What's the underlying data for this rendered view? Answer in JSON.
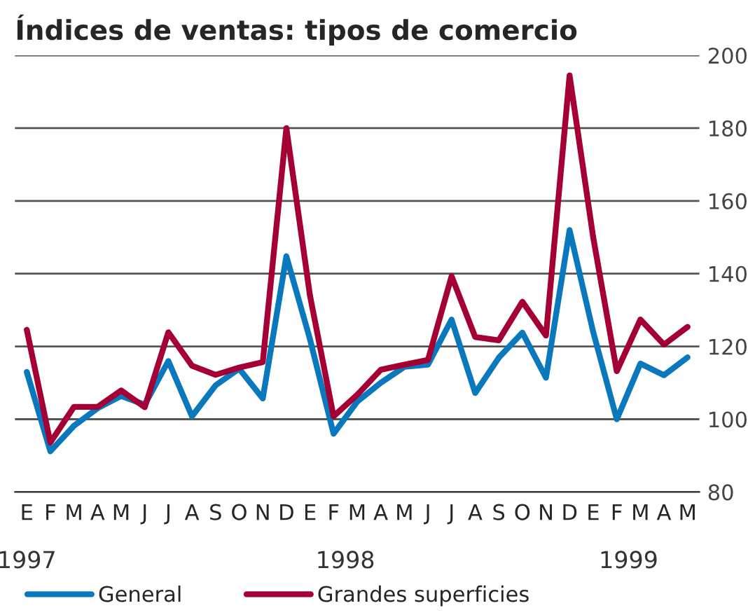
{
  "chart_data": {
    "type": "line",
    "title": "Índices de ventas: tipos de comercio",
    "categories": [
      "E",
      "F",
      "M",
      "A",
      "M",
      "J",
      "J",
      "A",
      "S",
      "O",
      "N",
      "D",
      "E",
      "F",
      "M",
      "A",
      "M",
      "J",
      "J",
      "A",
      "S",
      "O",
      "N",
      "D",
      "E",
      "F",
      "M",
      "A",
      "M"
    ],
    "annotations": [
      "1997",
      "1998",
      "1999"
    ],
    "series": [
      {
        "name": "General",
        "color": "#0a78bd",
        "values": [
          113,
          91.2,
          98.2,
          103,
          106.4,
          104,
          116,
          100.8,
          109.3,
          113.9,
          105.7,
          144.8,
          122,
          96,
          104.8,
          110,
          114.4,
          115,
          127.4,
          107.2,
          116.9,
          123.8,
          111.4,
          152,
          124,
          100,
          115.3,
          112.1,
          117
        ]
      },
      {
        "name": "Grandes superficies",
        "color": "#a50034",
        "values": [
          124.6,
          93.6,
          103.4,
          103.4,
          107.9,
          103.3,
          123.9,
          114.7,
          112.2,
          114.2,
          115.7,
          180,
          134,
          100.8,
          106.7,
          113.6,
          115,
          116.3,
          139.3,
          122.6,
          121.7,
          132.3,
          123,
          194.5,
          150,
          113.2,
          127.4,
          120.5,
          125.4
        ]
      }
    ],
    "ylim": [
      80,
      200
    ],
    "yticks": [
      80,
      100,
      120,
      140,
      160,
      180,
      200
    ],
    "grid": "y",
    "legend": "bottom left",
    "marker": "none",
    "line_style": "solid"
  }
}
